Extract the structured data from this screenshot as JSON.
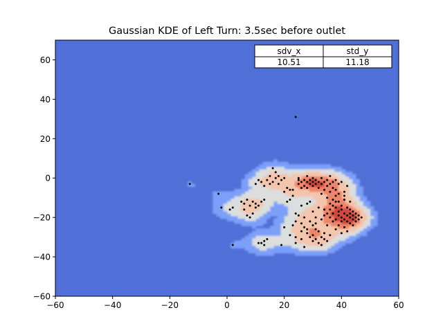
{
  "chart_data": {
    "type": "heatmap",
    "title": "Gaussian KDE of Left Turn: 3.5sec before outlet",
    "xlabel": "",
    "ylabel": "",
    "xlim": [
      -60,
      60
    ],
    "ylim": [
      -60,
      70
    ],
    "x_ticks": [
      "−60",
      "−40",
      "−20",
      "0",
      "20",
      "40",
      "60"
    ],
    "x_tick_values": [
      -60,
      -40,
      -20,
      0,
      20,
      40,
      60
    ],
    "y_ticks": [
      "−60",
      "−40",
      "−20",
      "0",
      "20",
      "40",
      "60"
    ],
    "y_tick_values": [
      -60,
      -40,
      -20,
      0,
      20,
      40,
      60
    ],
    "grid": false,
    "colormap": "coolwarm",
    "colors": {
      "background": "#5170d7",
      "low": "#7b9ff9",
      "mid": "#dcdddd",
      "high_1": "#f4c5ad",
      "high_2": "#ee8468",
      "peak": "#d0473d",
      "point": "#000000"
    },
    "stats_table": {
      "headers": [
        "sdv_x",
        "std_y"
      ],
      "values": [
        "10.51",
        "11.18"
      ]
    },
    "density_peaks": [
      {
        "x": 43,
        "y": -20,
        "weight": 1.0
      },
      {
        "x": 29,
        "y": -2,
        "weight": 0.6
      },
      {
        "x": 31,
        "y": -29,
        "weight": 0.55
      },
      {
        "x": 18,
        "y": -2,
        "weight": 0.3
      },
      {
        "x": 13,
        "y": -32,
        "weight": 0.25
      },
      {
        "x": 7,
        "y": -13,
        "weight": 0.15
      }
    ],
    "points": [
      [
        -13,
        -3
      ],
      [
        -3,
        -8
      ],
      [
        -2,
        -15
      ],
      [
        1,
        -16
      ],
      [
        2,
        -15
      ],
      [
        2,
        -34
      ],
      [
        5,
        -12
      ],
      [
        6,
        -13
      ],
      [
        6,
        -16
      ],
      [
        7,
        -11
      ],
      [
        7,
        -19
      ],
      [
        8,
        -20
      ],
      [
        8,
        -14
      ],
      [
        9,
        -18
      ],
      [
        9,
        -12
      ],
      [
        10,
        -15
      ],
      [
        10,
        -13
      ],
      [
        11,
        -33
      ],
      [
        11,
        -14
      ],
      [
        12,
        -12
      ],
      [
        12,
        -33
      ],
      [
        13,
        -34
      ],
      [
        13,
        -32
      ],
      [
        14,
        -31
      ],
      [
        13,
        -11
      ],
      [
        10,
        -3
      ],
      [
        11,
        -1
      ],
      [
        12,
        -2
      ],
      [
        13,
        -4
      ],
      [
        14,
        -1
      ],
      [
        15,
        -3
      ],
      [
        15,
        1
      ],
      [
        16,
        5
      ],
      [
        17,
        0
      ],
      [
        17,
        3
      ],
      [
        18,
        1
      ],
      [
        19,
        -1
      ],
      [
        20,
        0
      ],
      [
        18,
        -3
      ],
      [
        16,
        -2
      ],
      [
        19,
        -34
      ],
      [
        20,
        -25
      ],
      [
        21,
        -5
      ],
      [
        22,
        -6
      ],
      [
        22,
        -29
      ],
      [
        23,
        -6
      ],
      [
        23,
        -24
      ],
      [
        24,
        31
      ],
      [
        24,
        -22
      ],
      [
        24,
        -30
      ],
      [
        25,
        -1
      ],
      [
        25,
        -3
      ],
      [
        25,
        0
      ],
      [
        26,
        -2
      ],
      [
        26,
        -5
      ],
      [
        26,
        -14
      ],
      [
        26,
        -27
      ],
      [
        27,
        -1
      ],
      [
        27,
        -4
      ],
      [
        27,
        -25
      ],
      [
        27,
        -35
      ],
      [
        28,
        1
      ],
      [
        28,
        -2
      ],
      [
        28,
        -5
      ],
      [
        28,
        -13
      ],
      [
        28,
        -26
      ],
      [
        28,
        -28
      ],
      [
        29,
        -1
      ],
      [
        29,
        -3
      ],
      [
        29,
        -12
      ],
      [
        29,
        -30
      ],
      [
        30,
        0
      ],
      [
        30,
        -2
      ],
      [
        30,
        -4
      ],
      [
        30,
        -17
      ],
      [
        30,
        -29
      ],
      [
        30,
        -32
      ],
      [
        31,
        -1
      ],
      [
        31,
        -3
      ],
      [
        31,
        -26
      ],
      [
        31,
        -31
      ],
      [
        32,
        -2
      ],
      [
        32,
        -5
      ],
      [
        32,
        -15
      ],
      [
        32,
        -27
      ],
      [
        32,
        -33
      ],
      [
        33,
        0
      ],
      [
        33,
        -3
      ],
      [
        33,
        -8
      ],
      [
        33,
        -30
      ],
      [
        33,
        -34
      ],
      [
        34,
        -2
      ],
      [
        34,
        -6
      ],
      [
        34,
        -16
      ],
      [
        34,
        -28
      ],
      [
        34,
        -31
      ],
      [
        35,
        -1
      ],
      [
        35,
        -4
      ],
      [
        35,
        -10
      ],
      [
        35,
        -24
      ],
      [
        35,
        -32
      ],
      [
        36,
        -3
      ],
      [
        36,
        -7
      ],
      [
        36,
        -13
      ],
      [
        36,
        -20
      ],
      [
        36,
        -29
      ],
      [
        37,
        -2
      ],
      [
        37,
        -5
      ],
      [
        37,
        -11
      ],
      [
        37,
        -18
      ],
      [
        37,
        -22
      ],
      [
        38,
        -6
      ],
      [
        38,
        -9
      ],
      [
        38,
        -15
      ],
      [
        38,
        -21
      ],
      [
        38,
        -26
      ],
      [
        39,
        -8
      ],
      [
        39,
        -12
      ],
      [
        39,
        -17
      ],
      [
        39,
        -19
      ],
      [
        39,
        -24
      ],
      [
        40,
        -14
      ],
      [
        40,
        -16
      ],
      [
        40,
        -20
      ],
      [
        40,
        -22
      ],
      [
        40,
        -28
      ],
      [
        41,
        -11
      ],
      [
        41,
        -18
      ],
      [
        41,
        -21
      ],
      [
        41,
        -25
      ],
      [
        42,
        -15
      ],
      [
        42,
        -19
      ],
      [
        42,
        -22
      ],
      [
        42,
        -27
      ],
      [
        43,
        -16
      ],
      [
        43,
        -18
      ],
      [
        43,
        -20
      ],
      [
        43,
        -23
      ],
      [
        44,
        -17
      ],
      [
        44,
        -19
      ],
      [
        44,
        -21
      ],
      [
        44,
        -24
      ],
      [
        45,
        -18
      ],
      [
        45,
        -20
      ],
      [
        45,
        -22
      ],
      [
        46,
        -19
      ],
      [
        46,
        -21
      ],
      [
        47,
        -20
      ],
      [
        41,
        -7
      ],
      [
        42,
        -4
      ],
      [
        39,
        -3
      ],
      [
        40,
        -2
      ],
      [
        36,
        1
      ],
      [
        38,
        -1
      ],
      [
        24,
        -33
      ],
      [
        26,
        -31
      ],
      [
        29,
        -22
      ],
      [
        31,
        -20
      ],
      [
        22,
        -11
      ],
      [
        23,
        -9
      ],
      [
        20,
        -7
      ],
      [
        21,
        -12
      ],
      [
        24,
        -18
      ],
      [
        25,
        -19
      ],
      [
        27,
        -20
      ],
      [
        26,
        -23
      ],
      [
        30,
        -24
      ],
      [
        31,
        -23
      ],
      [
        33,
        -21
      ],
      [
        34,
        -19
      ],
      [
        35,
        -18
      ],
      [
        36,
        -16
      ],
      [
        37,
        -14
      ],
      [
        38,
        -12
      ],
      [
        41,
        -9
      ],
      [
        43,
        -12
      ]
    ]
  }
}
